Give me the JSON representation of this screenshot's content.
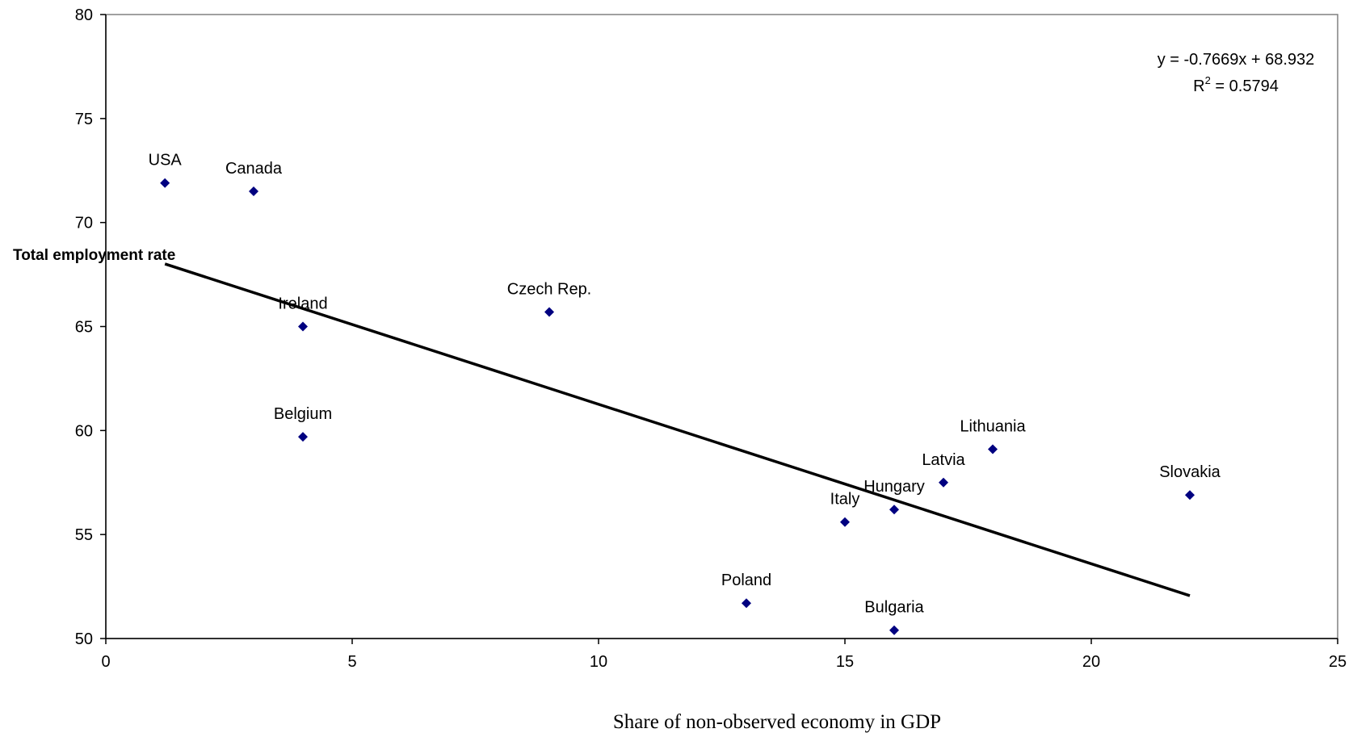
{
  "chart_data": {
    "type": "scatter",
    "title": "",
    "xlabel": "Share of non-observed economy in GDP",
    "ylabel": "Total employment rate",
    "xlim": [
      0,
      25
    ],
    "ylim": [
      50,
      80
    ],
    "xticks": [
      "0",
      "5",
      "10",
      "15",
      "20",
      "25"
    ],
    "yticks": [
      "50",
      "55",
      "60",
      "65",
      "70",
      "75",
      "80"
    ],
    "grid": false,
    "legend": "none",
    "marker_color": "#000080",
    "points": [
      {
        "label": "USA",
        "x": 1.2,
        "y": 71.9
      },
      {
        "label": "Canada",
        "x": 3,
        "y": 71.5
      },
      {
        "label": "Ireland",
        "x": 4,
        "y": 65.0
      },
      {
        "label": "Belgium",
        "x": 4,
        "y": 59.7
      },
      {
        "label": "Czech Rep.",
        "x": 9,
        "y": 65.7
      },
      {
        "label": "Poland",
        "x": 13,
        "y": 51.7
      },
      {
        "label": "Italy",
        "x": 15,
        "y": 55.6
      },
      {
        "label": "Hungary",
        "x": 16,
        "y": 56.2
      },
      {
        "label": "Bulgaria",
        "x": 16,
        "y": 50.4
      },
      {
        "label": "Latvia",
        "x": 17,
        "y": 57.5
      },
      {
        "label": "Lithuania",
        "x": 18,
        "y": 59.1
      },
      {
        "label": "Slovakia",
        "x": 22,
        "y": 56.9
      }
    ],
    "trendline": {
      "slope": -0.7669,
      "intercept": 68.932,
      "x_range": [
        1.2,
        22
      ],
      "equation": "y = -0.7669x + 68.932",
      "r2_prefix": "R",
      "r2_sup": "2",
      "r2_value": " = 0.5794"
    }
  }
}
